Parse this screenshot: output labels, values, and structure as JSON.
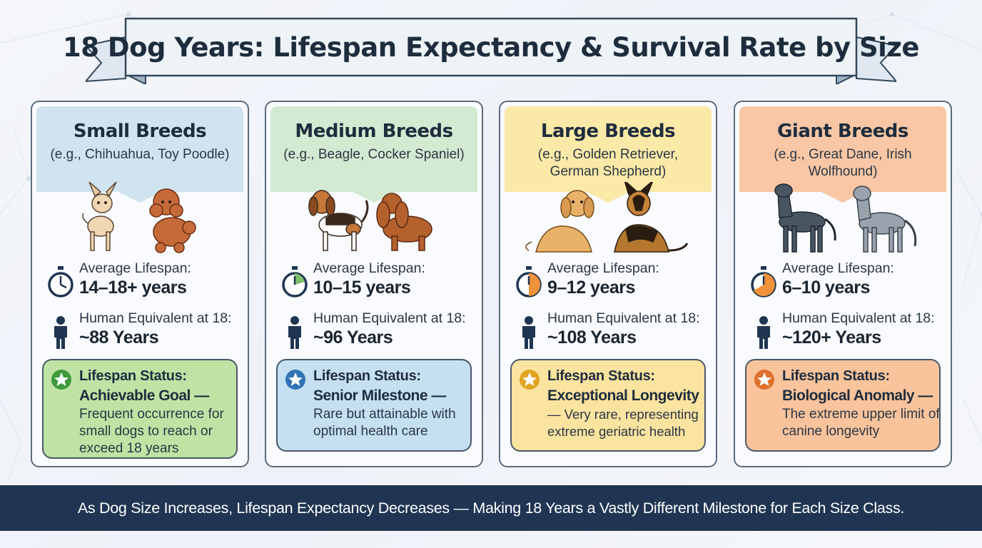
{
  "title": "18 Dog Years: Lifespan Expectancy & Survival Rate by Size",
  "colors": {
    "small": "#cfe3f0",
    "medium": "#d4e9d2",
    "large": "#fbe9a8",
    "giant": "#f9c7a5",
    "footer": "#1f3552"
  },
  "cards": [
    {
      "name": "Small Breeds",
      "examples": "(e.g., Chihuahua, Toy Poodle)",
      "lifespan_label": "Average Lifespan:",
      "lifespan_value": "14–18+ years",
      "human_label": "Human Equivalent at 18:",
      "human_value": "~88 Years",
      "status_title": "Lifespan Status:",
      "status_sub": "Achievable Goal —",
      "status_desc": "Frequent occurrence for small dogs to reach or exceed 18 years"
    },
    {
      "name": "Medium Breeds",
      "examples": "(e.g., Beagle, Cocker Spaniel)",
      "lifespan_label": "Average Lifespan:",
      "lifespan_value": "10–15 years",
      "human_label": "Human Equivalent at 18:",
      "human_value": "~96 Years",
      "status_title": "Lifespan Status:",
      "status_sub": "Senior Milestone —",
      "status_desc": "Rare but attainable with optimal health care"
    },
    {
      "name": "Large Breeds",
      "examples": "(e.g., Golden Retriever, German Shepherd)",
      "lifespan_label": "Average Lifespan:",
      "lifespan_value": "9–12 years",
      "human_label": "Human Equivalent at 18:",
      "human_value": "~108 Years",
      "status_title": "Lifespan Status:",
      "status_sub": "Exceptional Longevity",
      "status_desc": "— Very rare, representing extreme geriatric health"
    },
    {
      "name": "Giant Breeds",
      "examples": "(e.g., Great Dane, Irish Wolfhound)",
      "lifespan_label": "Average Lifespan:",
      "lifespan_value": "6–10 years",
      "human_label": "Human Equivalent at 18:",
      "human_value": "~120+ Years",
      "status_title": "Lifespan Status:",
      "status_sub": "Biological Anomaly —",
      "status_desc": "The extreme upper limit of canine longevity"
    }
  ],
  "icons": [
    "stopwatch-icon",
    "person-icon",
    "star-badge-icon"
  ],
  "footer": "As Dog Size Increases, Lifespan Expectancy Decreases — Making 18 Years a Vastly Different Milestone for Each Size Class."
}
